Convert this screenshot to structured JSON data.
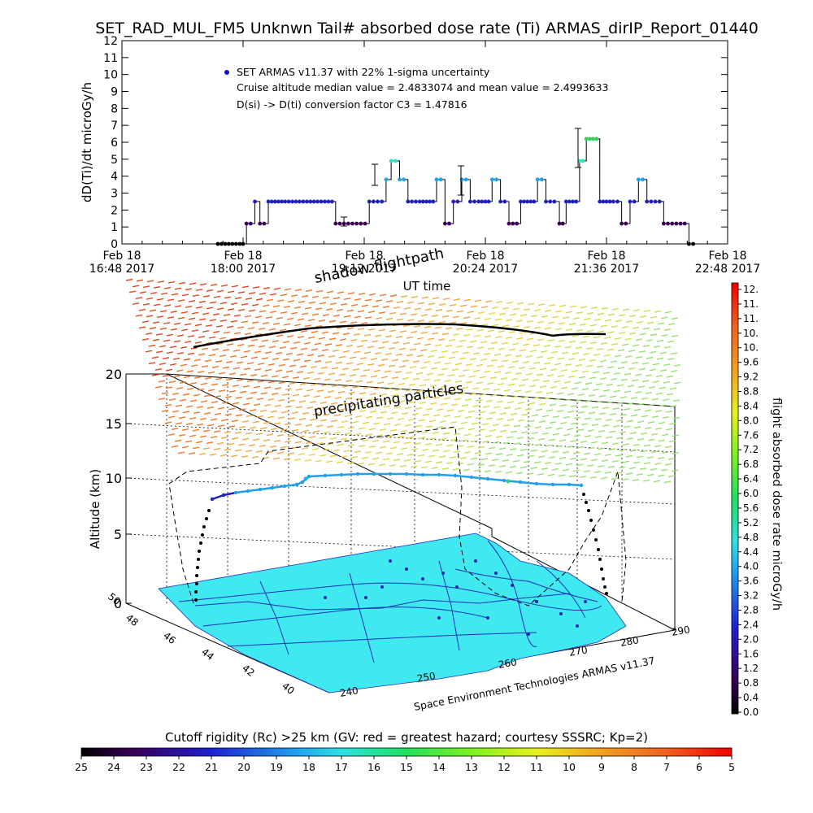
{
  "title": "SET_RAD_MUL_FM5 Unknwn Tail#  absorbed dose rate (Ti) ARMAS_dirIP_Report_01440",
  "top_chart": {
    "ylabel": "dD(Ti)/dt microGy/h",
    "xlabel": "UT time",
    "legend": {
      "series_label": "SET ARMAS v11.37 with 22% 1-sigma uncertainty",
      "median_line": "Cruise altitude median value = 2.4833074 and mean value = 2.4993633",
      "conversion_line": "D(si) -> D(ti) conversion factor C3 = 1.47816",
      "marker_color": "#1010c8"
    },
    "x_ticks": [
      {
        "date": "Feb 18",
        "time": "16:48 2017"
      },
      {
        "date": "Feb 18",
        "time": "18:00 2017"
      },
      {
        "date": "Feb 18",
        "time": "19:12 2017"
      },
      {
        "date": "Feb 18",
        "time": "20:24 2017"
      },
      {
        "date": "Feb 18",
        "time": "21:36 2017"
      },
      {
        "date": "Feb 18",
        "time": "22:48 2017"
      }
    ],
    "y_ticks": [
      "0",
      "1",
      "2",
      "3",
      "4",
      "5",
      "6",
      "7",
      "8",
      "9",
      "10",
      "11",
      "12"
    ]
  },
  "chart_data": [
    {
      "type": "line",
      "title": "SET_RAD_MUL_FM5 Unknwn Tail#  absorbed dose rate (Ti) ARMAS_dirIP_Report_01440",
      "xlabel": "UT time",
      "ylabel": "dD(Ti)/dt microGy/h",
      "xlim": [
        "2017-02-18 16:48",
        "2017-02-18 22:48"
      ],
      "ylim": [
        0,
        12
      ],
      "grid": false,
      "legend_position": "top-left",
      "series": [
        {
          "name": "SET ARMAS v11.37 with 22% 1-sigma uncertainty",
          "x": [
            "17:45",
            "17:58",
            "18:02",
            "18:07",
            "18:10",
            "18:15",
            "18:25",
            "18:40",
            "18:55",
            "19:00",
            "19:05",
            "19:10",
            "19:15",
            "19:20",
            "19:25",
            "19:28",
            "19:33",
            "19:38",
            "19:45",
            "19:55",
            "20:00",
            "20:05",
            "20:10",
            "20:15",
            "20:20",
            "20:24",
            "20:28",
            "20:33",
            "20:38",
            "20:45",
            "20:55",
            "21:00",
            "21:05",
            "21:08",
            "21:12",
            "21:16",
            "21:20",
            "21:24",
            "21:28",
            "21:32",
            "21:40",
            "21:45",
            "21:50",
            "21:55",
            "22:00",
            "22:05",
            "22:10",
            "22:15",
            "22:20",
            "22:25",
            "22:30"
          ],
          "y": [
            0,
            0,
            1.2,
            2.5,
            1.2,
            2.5,
            2.5,
            2.5,
            1.2,
            1.2,
            1.2,
            1.2,
            2.5,
            2.5,
            3.8,
            4.9,
            3.8,
            2.5,
            2.5,
            3.8,
            1.2,
            2.5,
            3.8,
            2.5,
            2.5,
            2.5,
            3.8,
            2.5,
            1.2,
            2.5,
            3.8,
            2.5,
            2.5,
            1.2,
            2.5,
            2.5,
            4.9,
            6.2,
            6.2,
            2.5,
            2.5,
            1.2,
            2.5,
            3.8,
            2.5,
            2.5,
            1.2,
            1.2,
            1.2,
            0,
            0
          ]
        }
      ]
    },
    {
      "type": "scatter",
      "title": "",
      "xlabel": "",
      "ylabel": "Altitude (km)",
      "zlim": [
        0,
        20
      ],
      "z_ticks": [
        "0",
        "5",
        "10",
        "15",
        "20"
      ],
      "lon_ticks": [
        "240",
        "250",
        "260",
        "270",
        "280",
        "290"
      ],
      "lat_ticks": [
        "40",
        "42",
        "44",
        "46",
        "48",
        "50"
      ],
      "series": [
        {
          "name": "",
          "x": [
            0.0,
            0.05,
            0.1,
            0.2,
            0.3,
            0.4,
            0.5,
            0.6,
            0.7,
            0.8,
            0.9,
            1.0
          ],
          "y": [
            2.5,
            3.8,
            3.8,
            3.8,
            3.8,
            3.8,
            3.8,
            4.0,
            3.8,
            3.8,
            3.8,
            3.8
          ]
        }
      ]
    }
  ],
  "panel3d": {
    "shadow_label": "shadow flightpath",
    "particles_label": "precipitating particles",
    "zlabel": "Altitude (km)",
    "z_ticks": [
      "0",
      "5",
      "10",
      "15",
      "20"
    ],
    "lon_ticks": [
      "240",
      "250",
      "260",
      "270",
      "280",
      "290"
    ],
    "lat_ticks": [
      "40",
      "42",
      "44",
      "46",
      "48",
      "50"
    ],
    "credit": "Space Environment Technologies ARMAS v11.37",
    "map_color": "#40e8f0"
  },
  "right_colorbar": {
    "label": "flight absorbed dose rate microGy/h",
    "ticks": [
      "12.",
      "11.",
      "11.",
      "10.",
      "10.",
      "9.6",
      "9.2",
      "8.8",
      "8.4",
      "8.0",
      "7.6",
      "7.2",
      "6.8",
      "6.4",
      "6.0",
      "5.6",
      "5.2",
      "4.8",
      "4.4",
      "4.0",
      "3.6",
      "3.2",
      "2.8",
      "2.4",
      "2.0",
      "1.6",
      "1.2",
      "0.8",
      "0.4",
      "0.0"
    ]
  },
  "bottom_colorbar": {
    "label": "Cutoff rigidity (Rc) >25 km (GV: red = greatest hazard; courtesy SSSRC; Kp=2)",
    "ticks": [
      "25",
      "24",
      "23",
      "22",
      "21",
      "20",
      "19",
      "18",
      "17",
      "16",
      "15",
      "14",
      "13",
      "12",
      "11",
      "10",
      "9",
      "8",
      "7",
      "6",
      "5"
    ]
  }
}
